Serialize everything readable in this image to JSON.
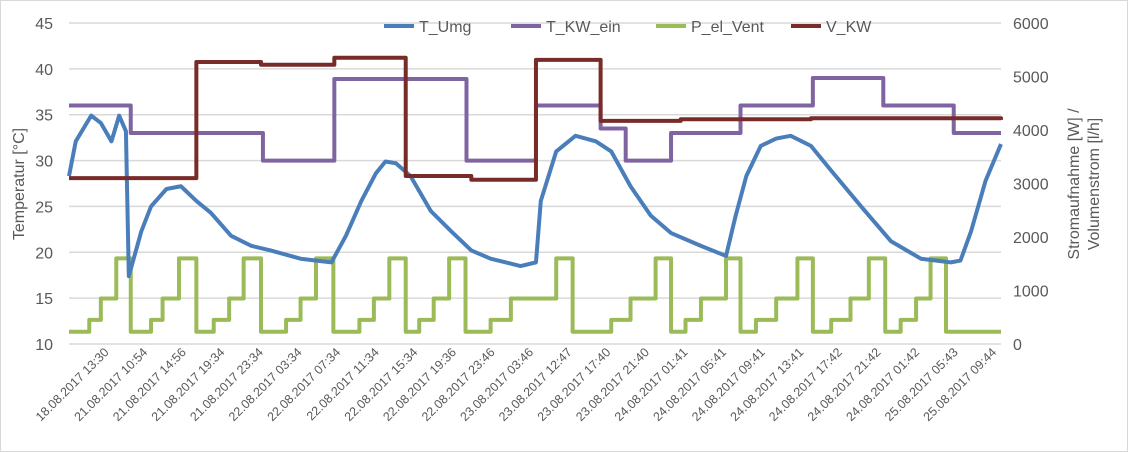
{
  "chart_data": {
    "type": "line",
    "title": "",
    "xlabel": "",
    "x_unit": "hours since start",
    "xlim": [
      0,
      96.6
    ],
    "x_tick_labels": [
      "18.08.2017 13:30",
      "21.08.2017 10:54",
      "21.08.2017 14:56",
      "21.08.2017 19:34",
      "21.08.2017 23:34",
      "22.08.2017 03:34",
      "22.08.2017 07:34",
      "22.08.2017 11:34",
      "22.08.2017 15:34",
      "22.08.2017 19:36",
      "22.08.2017 23:46",
      "23.08.2017 03:46",
      "23.08.2017 12:47",
      "23.08.2017 17:40",
      "23.08.2017 21:40",
      "24.08.2017 01:41",
      "24.08.2017 05:41",
      "24.08.2017 09:41",
      "24.08.2017 13:41",
      "24.08.2017 17:42",
      "24.08.2017 21:42",
      "24.08.2017 01:42",
      "25.08.2017 05:43",
      "25.08.2017 09:44"
    ],
    "x_tick_positions": [
      4,
      8,
      12,
      16,
      20,
      24,
      28,
      32,
      36,
      40,
      44,
      48,
      52,
      56,
      60,
      64,
      68,
      72,
      76,
      80,
      84,
      88,
      92,
      96
    ],
    "left_axis": {
      "label": "Temperatur [°C]",
      "ylim": [
        10,
        45
      ],
      "ticks": [
        10,
        15,
        20,
        25,
        30,
        35,
        40,
        45
      ]
    },
    "right_axis": {
      "label_line1": "Stromaufnahme [W] /",
      "label_line2": "Volumenstrom  [l/h]",
      "ylim": [
        0,
        6000
      ],
      "ticks": [
        0,
        1000,
        2000,
        3000,
        4000,
        5000,
        6000
      ]
    },
    "grid": true,
    "legend_position": "top",
    "series": [
      {
        "name": "T_Umg",
        "axis": "left",
        "color": "#4a7ebb",
        "kind": "line",
        "points": [
          [
            0,
            28.3
          ],
          [
            0.7,
            32.1
          ],
          [
            2.3,
            34.9
          ],
          [
            3.3,
            34.1
          ],
          [
            4.4,
            32.1
          ],
          [
            5.2,
            34.9
          ],
          [
            5.9,
            33.2
          ],
          [
            6.2,
            17.4
          ],
          [
            7.5,
            22.3
          ],
          [
            8.5,
            25.0
          ],
          [
            10.1,
            26.9
          ],
          [
            11.6,
            27.2
          ],
          [
            13.2,
            25.6
          ],
          [
            14.7,
            24.3
          ],
          [
            16.8,
            21.8
          ],
          [
            18.9,
            20.7
          ],
          [
            20.9,
            20.2
          ],
          [
            24.0,
            19.3
          ],
          [
            27.2,
            18.9
          ],
          [
            28.7,
            21.8
          ],
          [
            30.3,
            25.6
          ],
          [
            31.8,
            28.6
          ],
          [
            32.8,
            29.9
          ],
          [
            33.9,
            29.7
          ],
          [
            35.4,
            28.3
          ],
          [
            37.5,
            24.5
          ],
          [
            39.6,
            22.3
          ],
          [
            41.7,
            20.2
          ],
          [
            43.7,
            19.3
          ],
          [
            46.8,
            18.5
          ],
          [
            48.4,
            18.9
          ],
          [
            48.9,
            25.6
          ],
          [
            50.5,
            31.0
          ],
          [
            52.5,
            32.7
          ],
          [
            54.6,
            32.1
          ],
          [
            56.2,
            31.0
          ],
          [
            58.2,
            27.2
          ],
          [
            60.3,
            24.0
          ],
          [
            62.4,
            22.1
          ],
          [
            65.5,
            20.7
          ],
          [
            68.1,
            19.6
          ],
          [
            69.1,
            24.0
          ],
          [
            70.2,
            28.3
          ],
          [
            71.7,
            31.6
          ],
          [
            73.3,
            32.4
          ],
          [
            74.8,
            32.7
          ],
          [
            76.9,
            31.6
          ],
          [
            79.0,
            28.9
          ],
          [
            82.1,
            25.0
          ],
          [
            85.2,
            21.2
          ],
          [
            88.3,
            19.3
          ],
          [
            91.4,
            18.9
          ],
          [
            92.4,
            19.1
          ],
          [
            93.5,
            22.3
          ],
          [
            95.0,
            27.8
          ],
          [
            96.6,
            31.8
          ]
        ]
      },
      {
        "name": "T_KW_ein",
        "axis": "left",
        "color": "#8064a2",
        "kind": "step",
        "points": [
          [
            0,
            36.0
          ],
          [
            6.4,
            33.0
          ],
          [
            20.1,
            30.0
          ],
          [
            27.5,
            38.9
          ],
          [
            41.2,
            30.0
          ],
          [
            48.4,
            36.0
          ],
          [
            55.1,
            33.5
          ],
          [
            57.7,
            30.0
          ],
          [
            62.4,
            33.0
          ],
          [
            69.6,
            36.0
          ],
          [
            77.1,
            39.0
          ],
          [
            84.4,
            36.0
          ],
          [
            91.7,
            33.0
          ],
          [
            96.6,
            33.0
          ]
        ]
      },
      {
        "name": "P_el_Vent",
        "axis": "right",
        "color": "#9bbb59",
        "kind": "cycles",
        "levels": {
          "base": 230,
          "step1": 450,
          "step2": 850,
          "high": 1600
        },
        "cycles": [
          [
            2.1,
            3.3,
            4.9,
            6.4
          ],
          [
            8.5,
            9.7,
            11.4,
            13.2
          ],
          [
            15.0,
            16.6,
            18.1,
            19.9
          ],
          [
            22.5,
            24.0,
            25.6,
            27.4
          ],
          [
            30.1,
            31.6,
            33.2,
            34.9
          ],
          [
            36.3,
            37.8,
            39.4,
            41.1
          ],
          [
            43.7,
            45.8,
            50.5,
            52.2
          ],
          [
            56.2,
            58.2,
            60.8,
            62.4
          ],
          [
            63.9,
            65.5,
            68.1,
            69.6
          ],
          [
            71.2,
            73.3,
            75.5,
            77.1
          ],
          [
            79.0,
            81.0,
            82.9,
            84.6
          ],
          [
            86.2,
            87.8,
            89.3,
            90.9
          ]
        ]
      },
      {
        "name": "V_KW",
        "axis": "right",
        "color": "#772c2a",
        "kind": "step",
        "points": [
          [
            0,
            3100
          ],
          [
            13.2,
            5270
          ],
          [
            19.9,
            5220
          ],
          [
            27.5,
            5350
          ],
          [
            34.9,
            3140
          ],
          [
            41.7,
            3070
          ],
          [
            48.4,
            5310
          ],
          [
            55.1,
            4170
          ],
          [
            63.4,
            4200
          ],
          [
            76.9,
            4220
          ],
          [
            96.6,
            4190
          ]
        ]
      }
    ]
  }
}
